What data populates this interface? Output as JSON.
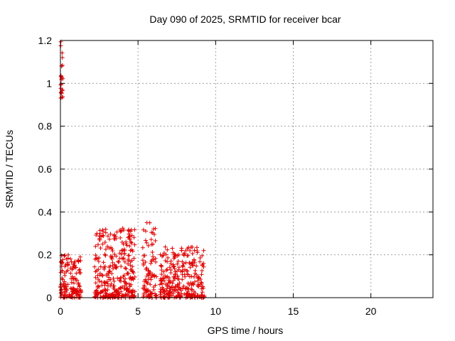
{
  "chart_data": {
    "type": "scatter",
    "title": "Day 090 of 2025, SRMTID for receiver bcar",
    "xlabel": "GPS time / hours",
    "ylabel": "SRMTID / TECUs",
    "xlim": [
      0,
      24
    ],
    "ylim": [
      0,
      1.2
    ],
    "xticks": [
      0,
      5,
      10,
      15,
      20
    ],
    "xtick_labels": [
      "0",
      "5",
      "10",
      "15",
      "20"
    ],
    "yticks": [
      0,
      0.2,
      0.4,
      0.6,
      0.8,
      1.0,
      1.2
    ],
    "ytick_labels": [
      "0",
      "0.2",
      "0.4",
      "0.6",
      "0.8",
      "1",
      "1.2"
    ],
    "grid": true,
    "marker": "+",
    "color": "#e00000",
    "series": [
      {
        "name": "SRMTID",
        "clusters": [
          {
            "x_range": [
              0.0,
              0.15
            ],
            "y_range": [
              0.93,
              1.2
            ],
            "count": 22
          },
          {
            "x_range": [
              0.0,
              1.35
            ],
            "y_range": [
              0.0,
              0.2
            ],
            "count": 150
          },
          {
            "x_range": [
              2.2,
              4.8
            ],
            "y_range": [
              0.0,
              0.33
            ],
            "count": 330
          },
          {
            "x_range": [
              5.3,
              6.2
            ],
            "y_range": [
              0.0,
              0.35
            ],
            "count": 90
          },
          {
            "x_range": [
              6.4,
              9.3
            ],
            "y_range": [
              0.0,
              0.24
            ],
            "count": 300
          }
        ]
      }
    ]
  }
}
